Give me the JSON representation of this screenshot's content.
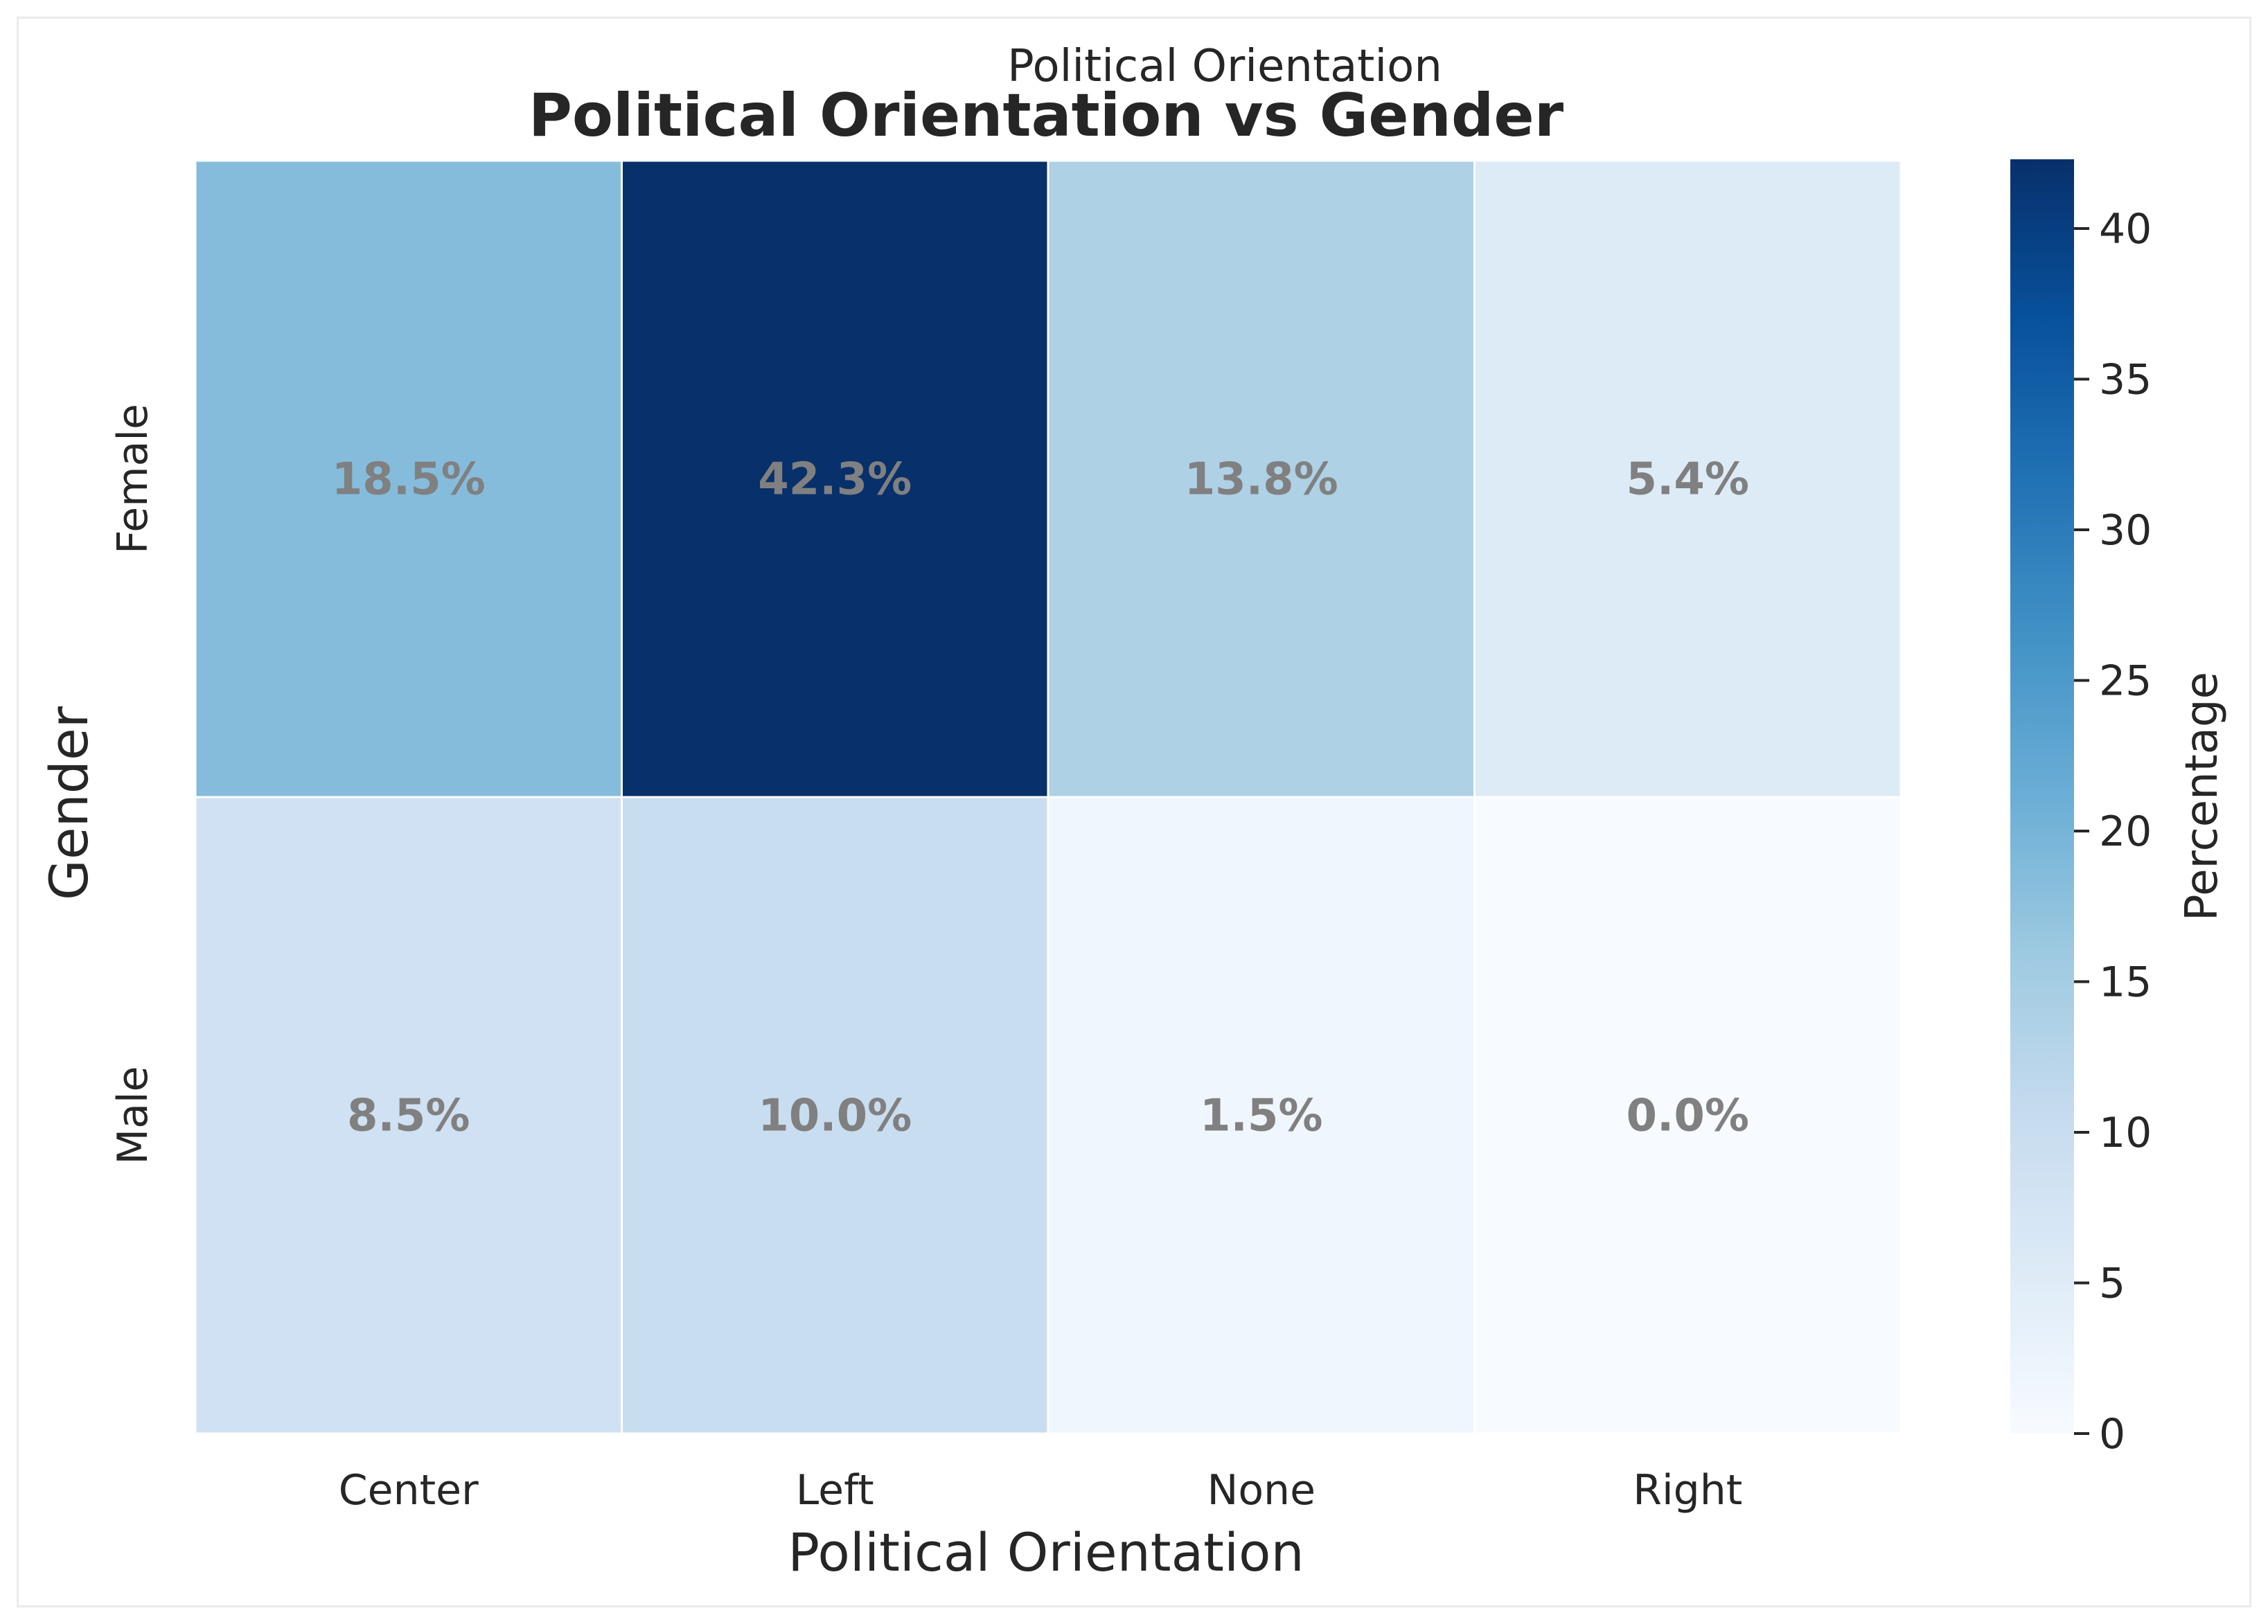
{
  "chart_data": {
    "type": "heatmap",
    "top_label": "Political Orientation",
    "title": "Political Orientation vs Gender",
    "xlabel": "Political Orientation",
    "ylabel": "Gender",
    "x_categories": [
      "Center",
      "Left",
      "None",
      "Right"
    ],
    "y_categories": [
      "Female",
      "Male"
    ],
    "values": [
      [
        18.5,
        42.3,
        13.8,
        5.4
      ],
      [
        8.5,
        10.0,
        1.5,
        0.0
      ]
    ],
    "cell_labels": [
      [
        "18.5%",
        "42.3%",
        "13.8%",
        "5.4%"
      ],
      [
        "8.5%",
        "10.0%",
        "1.5%",
        "0.0%"
      ]
    ],
    "colorbar": {
      "label": "Percentage",
      "range": [
        0,
        42.3
      ],
      "ticks": [
        0,
        5,
        10,
        15,
        20,
        25,
        30,
        35,
        40
      ],
      "colormap": "Blues"
    }
  }
}
